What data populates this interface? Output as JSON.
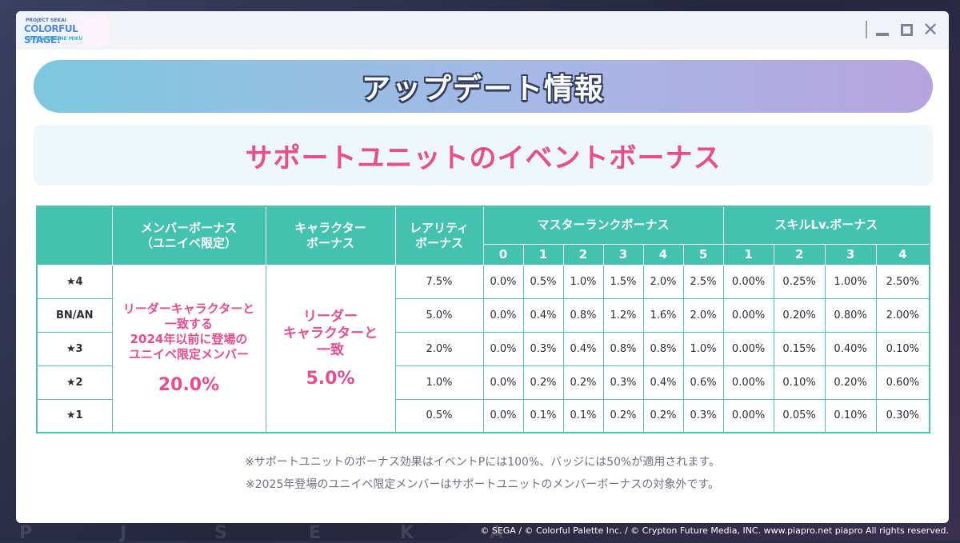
{
  "logo": {
    "top": "PROJECT SEKAI",
    "main": "COLORFUL STAGE!",
    "sub": "feat. HATSUNE MIKU"
  },
  "header": {
    "title": "アップデート情報"
  },
  "subtitle": "サポートユニットのイベントボーナス",
  "table": {
    "headers": {
      "member_bonus": "メンバーボーナス\n（ユニイベ限定）",
      "character_bonus": "キャラクター\nボーナス",
      "rarity_bonus": "レアリティ\nボーナス",
      "master_rank_bonus": "マスターランクボーナス",
      "skill_bonus": "スキルLv.ボーナス",
      "master_rank_levels": [
        "0",
        "1",
        "2",
        "3",
        "4",
        "5"
      ],
      "skill_levels": [
        "1",
        "2",
        "3",
        "4"
      ]
    },
    "member_bonus_text": "リーダーキャラクターと\n一致する\n2024年以前に登場の\nユニイベ限定メンバー",
    "member_bonus_value": "20.0%",
    "character_bonus_text": "リーダー\nキャラクターと\n一致",
    "character_bonus_value": "5.0%",
    "rows": [
      {
        "label": "★4",
        "rarity": "7.5%",
        "master": [
          "0.0%",
          "0.5%",
          "1.0%",
          "1.5%",
          "2.0%",
          "2.5%"
        ],
        "skill": [
          "0.00%",
          "0.25%",
          "1.00%",
          "2.50%"
        ]
      },
      {
        "label": "BN/AN",
        "rarity": "5.0%",
        "master": [
          "0.0%",
          "0.4%",
          "0.8%",
          "1.2%",
          "1.6%",
          "2.0%"
        ],
        "skill": [
          "0.00%",
          "0.20%",
          "0.80%",
          "2.00%"
        ]
      },
      {
        "label": "★3",
        "rarity": "2.0%",
        "master": [
          "0.0%",
          "0.3%",
          "0.4%",
          "0.8%",
          "0.8%",
          "1.0%"
        ],
        "skill": [
          "0.00%",
          "0.15%",
          "0.40%",
          "0.10%"
        ]
      },
      {
        "label": "★2",
        "rarity": "1.0%",
        "master": [
          "0.0%",
          "0.2%",
          "0.2%",
          "0.3%",
          "0.4%",
          "0.6%"
        ],
        "skill": [
          "0.00%",
          "0.10%",
          "0.20%",
          "0.60%"
        ]
      },
      {
        "label": "★1",
        "rarity": "0.5%",
        "master": [
          "0.0%",
          "0.1%",
          "0.1%",
          "0.2%",
          "0.2%",
          "0.3%"
        ],
        "skill": [
          "0.00%",
          "0.05%",
          "0.10%",
          "0.30%"
        ]
      }
    ]
  },
  "notes": [
    "※サポートユニットのボーナス効果はイベントPには100%、バッジには50%が適用されます。",
    "※2025年登場のユニイベ限定メンバーはサポートユニットのメンバーボーナスの対象外です。"
  ],
  "background_letters": [
    "P",
    "J",
    "S",
    "E",
    "K",
    "A"
  ],
  "copyright": "© SEGA / © Colorful Palette Inc. / © Crypton Future Media, INC. www.piapro.net piapro All rights reserved.",
  "colors": {
    "table_header": "#44c2b0",
    "accent_pink": "#ea4c8f",
    "merged_cell_bg": "#fdfdec"
  }
}
